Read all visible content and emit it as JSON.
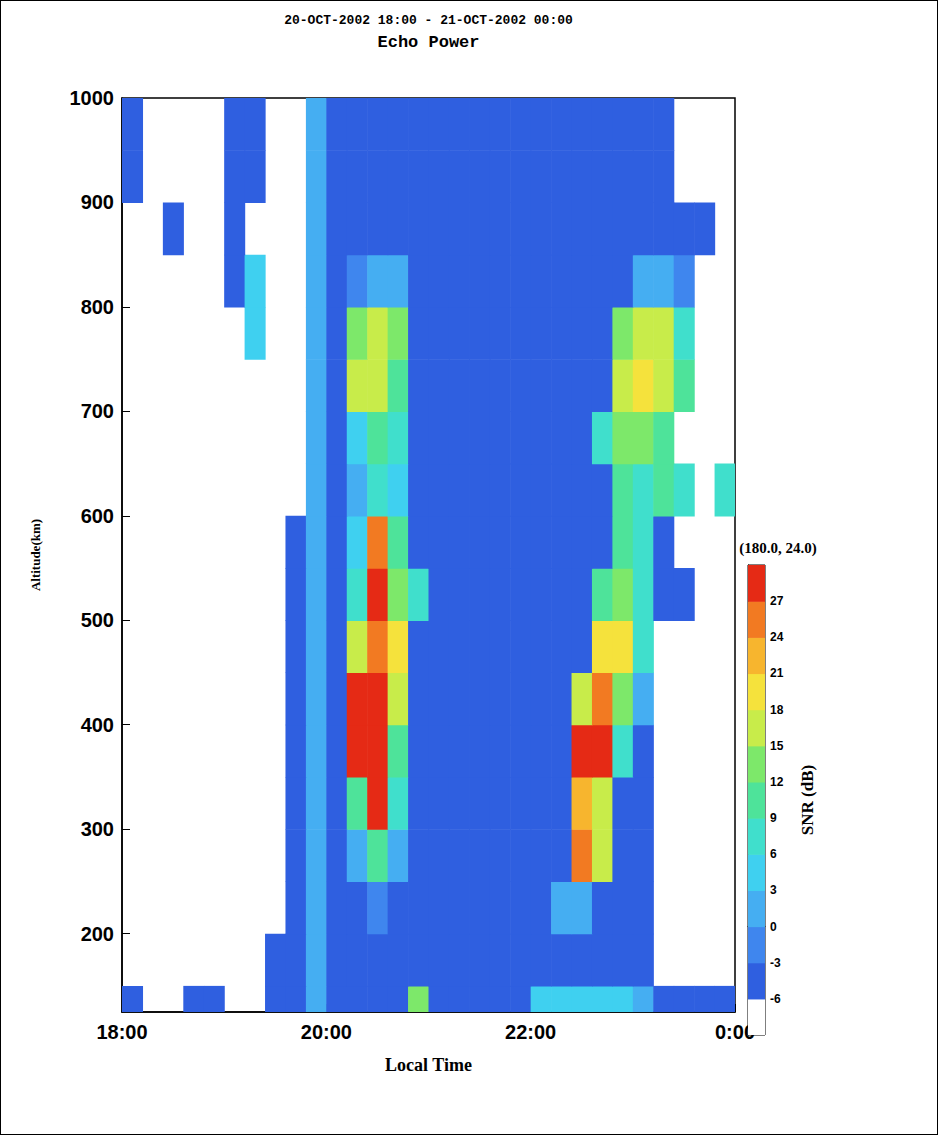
{
  "chart_data": {
    "type": "heatmap",
    "title": "20-OCT-2002 18:00 - 21-OCT-2002 00:00",
    "subtitle": "Echo Power",
    "x_label": "Local Time",
    "y_label": "Altitude(km)",
    "xlim": [
      18,
      24
    ],
    "xticks": [
      {
        "value": 18,
        "label": "18:00"
      },
      {
        "value": 20,
        "label": "20:00"
      },
      {
        "value": 22,
        "label": "22:00"
      },
      {
        "value": 24,
        "label": "0:00"
      }
    ],
    "ylim": [
      125,
      1000
    ],
    "yticks": [
      200,
      300,
      400,
      500,
      600,
      700,
      800,
      900,
      1000
    ],
    "grid": false,
    "x_edges": [
      18,
      18.2,
      18.4,
      18.6,
      18.8,
      19,
      19.2,
      19.4,
      19.6,
      19.8,
      20,
      20.2,
      20.4,
      20.6,
      20.8,
      21,
      21.2,
      21.4,
      21.6,
      21.8,
      22,
      22.2,
      22.4,
      22.6,
      22.8,
      23,
      23.2,
      23.4,
      23.6,
      23.8,
      24
    ],
    "y_edges": [
      125,
      150,
      200,
      250,
      300,
      350,
      400,
      450,
      500,
      550,
      600,
      650,
      700,
      750,
      800,
      850,
      900,
      950,
      1000
    ],
    "z": [
      [
        -5,
        null,
        null,
        -5,
        -5,
        null,
        null,
        -4,
        -4,
        0,
        -4,
        -4,
        -4,
        -4,
        12,
        -4,
        -4,
        -4,
        -4,
        -4,
        3,
        3,
        3,
        3,
        3,
        0,
        -5,
        -5,
        -5,
        -5
      ],
      [
        null,
        null,
        null,
        null,
        null,
        null,
        null,
        -4,
        -5,
        0,
        -4,
        -4,
        -4,
        -4,
        -4,
        -4,
        -4,
        -4,
        -4,
        -4,
        -4,
        -4,
        -4,
        -4,
        -4,
        -5,
        null,
        null,
        null,
        null
      ],
      [
        null,
        null,
        null,
        null,
        null,
        null,
        null,
        null,
        -5,
        0,
        -4,
        -4,
        -3,
        -4,
        -4,
        -4,
        -4,
        -4,
        -4,
        -4,
        -4,
        0,
        0,
        -4,
        -4,
        -5,
        null,
        null,
        null,
        null
      ],
      [
        null,
        null,
        null,
        null,
        null,
        null,
        null,
        null,
        -5,
        0,
        -4,
        0,
        9,
        0,
        -4,
        -4,
        -4,
        -4,
        -4,
        -4,
        -4,
        -4,
        24,
        15,
        -4,
        -5,
        null,
        null,
        null,
        null
      ],
      [
        null,
        null,
        null,
        null,
        null,
        null,
        null,
        null,
        -5,
        0,
        -4,
        9,
        27,
        6,
        -4,
        -4,
        -4,
        -4,
        -4,
        -4,
        -4,
        -4,
        21,
        15,
        -4,
        -5,
        null,
        null,
        null,
        null
      ],
      [
        null,
        null,
        null,
        null,
        null,
        null,
        null,
        null,
        -5,
        0,
        -4,
        27,
        27,
        9,
        -4,
        -4,
        -4,
        -4,
        -4,
        -4,
        -4,
        -4,
        27,
        27,
        6,
        -5,
        null,
        null,
        null,
        null
      ],
      [
        null,
        null,
        null,
        null,
        null,
        null,
        null,
        null,
        -5,
        0,
        -4,
        27,
        27,
        15,
        -4,
        -4,
        -4,
        -4,
        -4,
        -4,
        -4,
        -4,
        15,
        24,
        12,
        0,
        null,
        null,
        null,
        null
      ],
      [
        null,
        null,
        null,
        null,
        null,
        null,
        null,
        null,
        -5,
        0,
        -4,
        15,
        24,
        18,
        -4,
        -4,
        -4,
        -4,
        -4,
        -4,
        -4,
        -4,
        -4,
        18,
        18,
        6,
        null,
        null,
        null,
        null
      ],
      [
        null,
        null,
        null,
        null,
        null,
        null,
        null,
        null,
        -5,
        0,
        -4,
        6,
        27,
        12,
        6,
        -4,
        -4,
        -4,
        -4,
        -4,
        -4,
        -4,
        -4,
        9,
        12,
        6,
        -5,
        -5,
        null,
        null
      ],
      [
        null,
        null,
        null,
        null,
        null,
        null,
        null,
        null,
        -5,
        0,
        -4,
        3,
        24,
        9,
        -4,
        -4,
        -4,
        -4,
        -4,
        -4,
        -4,
        -4,
        -4,
        -4,
        9,
        6,
        -5,
        null,
        null,
        null
      ],
      [
        null,
        null,
        null,
        null,
        null,
        null,
        null,
        null,
        null,
        0,
        -4,
        0,
        6,
        3,
        -4,
        -4,
        -4,
        -4,
        -4,
        -4,
        -4,
        -4,
        -4,
        -4,
        9,
        6,
        9,
        6,
        null,
        6
      ],
      [
        null,
        null,
        null,
        null,
        null,
        null,
        null,
        null,
        null,
        0,
        -4,
        3,
        9,
        6,
        -4,
        -4,
        -4,
        -4,
        -4,
        -4,
        -4,
        -4,
        -4,
        6,
        12,
        12,
        9,
        null,
        null,
        null
      ],
      [
        null,
        null,
        null,
        null,
        null,
        null,
        null,
        null,
        null,
        0,
        -4,
        15,
        15,
        9,
        -4,
        -4,
        -4,
        -4,
        -4,
        -4,
        -4,
        -4,
        -4,
        -4,
        15,
        18,
        15,
        9,
        null,
        null
      ],
      [
        null,
        null,
        null,
        null,
        null,
        null,
        3,
        null,
        null,
        0,
        -4,
        12,
        15,
        12,
        -4,
        -4,
        -4,
        -4,
        -4,
        -4,
        -4,
        -4,
        -4,
        -4,
        12,
        15,
        15,
        6,
        null,
        null
      ],
      [
        null,
        null,
        null,
        null,
        null,
        -5,
        3,
        null,
        null,
        0,
        -4,
        -3,
        0,
        0,
        -4,
        -4,
        -4,
        -4,
        -4,
        -4,
        -4,
        -4,
        -4,
        -4,
        -4,
        0,
        0,
        -3,
        null,
        null
      ],
      [
        null,
        null,
        -5,
        null,
        null,
        -5,
        null,
        null,
        null,
        0,
        -4,
        -4,
        -4,
        -4,
        -4,
        -4,
        -4,
        -4,
        -4,
        -4,
        -4,
        -4,
        -4,
        -4,
        -4,
        -4,
        -4,
        -5,
        -5,
        null
      ],
      [
        -5,
        null,
        null,
        null,
        null,
        -5,
        -5,
        null,
        null,
        0,
        -4,
        -4,
        -4,
        -4,
        -4,
        -4,
        -4,
        -4,
        -4,
        -4,
        -4,
        -4,
        -4,
        -4,
        -4,
        -4,
        -4,
        null,
        null,
        null
      ],
      [
        -5,
        null,
        null,
        null,
        null,
        -5,
        -5,
        null,
        null,
        0,
        -4,
        -4,
        -4,
        -4,
        -4,
        -4,
        -4,
        -4,
        -4,
        -4,
        -4,
        -4,
        -4,
        -4,
        -4,
        -4,
        -4,
        null,
        null,
        null
      ]
    ],
    "colorbar": {
      "label": "SNR (dB)",
      "annotation": "(180.0, 24.0)",
      "range": [
        -9,
        30
      ],
      "ticks": [
        -6,
        -3,
        0,
        3,
        6,
        9,
        12,
        15,
        18,
        21,
        24,
        27
      ],
      "colors": [
        "#ffffff",
        "#2f5fe0",
        "#3f86ee",
        "#45aef2",
        "#3fd0f0",
        "#40dfcc",
        "#4ee39a",
        "#7de86a",
        "#c8ec4a",
        "#f5e23c",
        "#f7b52e",
        "#f27a22",
        "#e52a15"
      ]
    }
  }
}
